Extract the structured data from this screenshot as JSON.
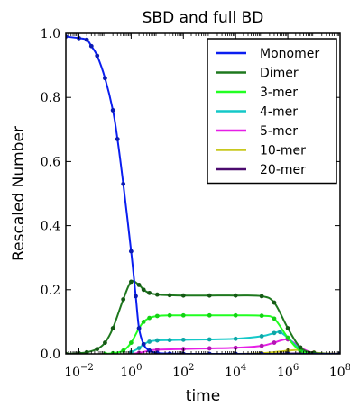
{
  "chart_data": {
    "type": "line",
    "title": "SBD and full BD",
    "xlabel": "time",
    "ylabel": "Rescaled Number",
    "xscale": "log",
    "xlim": [
      0.003162,
      100000000
    ],
    "ylim": [
      0.0,
      1.0
    ],
    "xticks": [
      {
        "value": 0.01,
        "base": "10",
        "exp": "−2"
      },
      {
        "value": 1,
        "base": "10",
        "exp": "0"
      },
      {
        "value": 100,
        "base": "10",
        "exp": "2"
      },
      {
        "value": 10000,
        "base": "10",
        "exp": "4"
      },
      {
        "value": 1000000,
        "base": "10",
        "exp": "6"
      },
      {
        "value": 100000000,
        "base": "10",
        "exp": "8"
      }
    ],
    "yticks": [
      {
        "value": 0.0,
        "label": "0.0"
      },
      {
        "value": 0.2,
        "label": "0.2"
      },
      {
        "value": 0.4,
        "label": "0.4"
      },
      {
        "value": 0.6,
        "label": "0.6"
      },
      {
        "value": 0.8,
        "label": "0.8"
      },
      {
        "value": 1.0,
        "label": "1.0"
      }
    ],
    "grid": false,
    "legend_position": "top-right",
    "series": [
      {
        "name": "Monomer",
        "line_color": "#0a1ef0",
        "marker_color": "#0a1ab4",
        "x": [
          0.003162,
          0.01,
          0.02,
          0.03,
          0.05,
          0.1,
          0.2,
          0.3,
          0.5,
          1,
          1.5,
          2,
          3,
          5,
          10,
          30,
          100,
          1000,
          10000,
          100000,
          1000000,
          100000000
        ],
        "y": [
          0.99,
          0.985,
          0.98,
          0.96,
          0.93,
          0.86,
          0.76,
          0.67,
          0.53,
          0.32,
          0.18,
          0.08,
          0.03,
          0.01,
          0.003,
          0.001,
          0.0,
          0.0,
          0.0,
          0.0,
          0.0,
          0.0
        ]
      },
      {
        "name": "Dimer",
        "line_color": "#1e781e",
        "marker_color": "#145a14",
        "x": [
          0.003162,
          0.01,
          0.02,
          0.05,
          0.1,
          0.2,
          0.5,
          1,
          2,
          3,
          5,
          10,
          30,
          100,
          1000,
          10000,
          100000,
          300000,
          1000000,
          3000000,
          10000000,
          100000000
        ],
        "y": [
          0.0,
          0.002,
          0.005,
          0.015,
          0.035,
          0.08,
          0.17,
          0.225,
          0.215,
          0.2,
          0.19,
          0.185,
          0.183,
          0.182,
          0.182,
          0.182,
          0.18,
          0.16,
          0.08,
          0.02,
          0.003,
          0.0
        ]
      },
      {
        "name": "3-mer",
        "line_color": "#22ff22",
        "marker_color": "#14d214",
        "x": [
          0.1,
          0.2,
          0.5,
          1,
          2,
          3,
          5,
          10,
          30,
          100,
          1000,
          10000,
          100000,
          300000,
          1000000,
          3000000,
          10000000,
          100000000
        ],
        "y": [
          0.0,
          0.002,
          0.01,
          0.035,
          0.08,
          0.1,
          0.112,
          0.118,
          0.12,
          0.12,
          0.12,
          0.12,
          0.119,
          0.11,
          0.05,
          0.01,
          0.001,
          0.0
        ]
      },
      {
        "name": "4-mer",
        "line_color": "#14c8c8",
        "marker_color": "#0ea5a5",
        "x": [
          1,
          2,
          3,
          5,
          10,
          30,
          100,
          1000,
          10000,
          100000,
          300000,
          500000,
          1000000,
          3000000,
          10000000,
          100000000
        ],
        "y": [
          0.005,
          0.018,
          0.03,
          0.038,
          0.042,
          0.043,
          0.044,
          0.045,
          0.047,
          0.055,
          0.065,
          0.068,
          0.05,
          0.015,
          0.002,
          0.0
        ]
      },
      {
        "name": "5-mer",
        "line_color": "#e61ee6",
        "marker_color": "#b414b4",
        "x": [
          1,
          2,
          5,
          10,
          100,
          1000,
          10000,
          100000,
          300000,
          1000000,
          3000000,
          10000000,
          100000000
        ],
        "y": [
          0.0,
          0.003,
          0.01,
          0.013,
          0.015,
          0.017,
          0.019,
          0.025,
          0.035,
          0.045,
          0.02,
          0.003,
          0.0
        ]
      },
      {
        "name": "10-mer",
        "line_color": "#c8c81e",
        "marker_color": "#9a9a10",
        "x": [
          100,
          10000,
          100000,
          1000000,
          3000000,
          10000000,
          100000000
        ],
        "y": [
          0.0,
          0.0,
          0.002,
          0.01,
          0.012,
          0.004,
          0.0
        ]
      },
      {
        "name": "20-mer",
        "line_color": "#4b0a6e",
        "marker_color": "#320550",
        "x": [
          10000,
          1000000,
          10000000,
          100000000
        ],
        "y": [
          0.0,
          0.001,
          0.002,
          0.0
        ]
      }
    ]
  }
}
